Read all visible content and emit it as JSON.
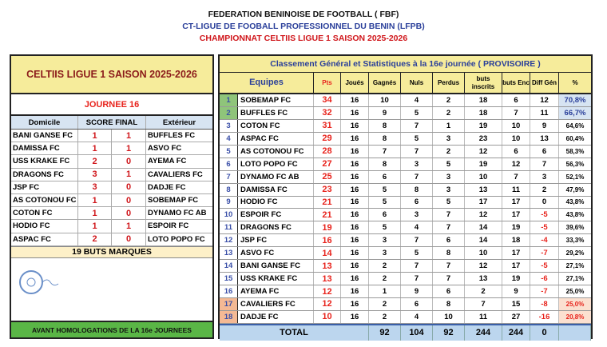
{
  "header": {
    "line1": "FEDERATION BENINOISE DE FOOTBALL ( FBF)",
    "line2": "CT-LIGUE DE FOOBALL PROFESSIONNEL DU BENIN (LFPB)",
    "line3": "CHAMPIONNAT CELTIIS LIGUE 1 SAISON 2025-2026"
  },
  "left": {
    "title": "CELTIIS LIGUE 1 SAISON 2025-2026",
    "journee": "JOURNEE  16",
    "headers": {
      "home": "Domicile",
      "score": "SCORE FINAL",
      "away": "Extérieur"
    },
    "matches": [
      {
        "home": "BANI GANSE FC",
        "hs": "1",
        "as": "1",
        "away": "BUFFLES FC"
      },
      {
        "home": "DAMISSA FC",
        "hs": "1",
        "as": "1",
        "away": "ASVO FC"
      },
      {
        "home": "USS KRAKE FC",
        "hs": "2",
        "as": "0",
        "away": "AYEMA FC"
      },
      {
        "home": "DRAGONS FC",
        "hs": "3",
        "as": "1",
        "away": "CAVALIERS FC"
      },
      {
        "home": "JSP FC",
        "hs": "3",
        "as": "0",
        "away": "DADJE FC"
      },
      {
        "home": "AS COTONOU FC",
        "hs": "1",
        "as": "0",
        "away": "SOBEMAP FC"
      },
      {
        "home": "COTON FC",
        "hs": "1",
        "as": "0",
        "away": "DYNAMO FC AB"
      },
      {
        "home": "HODIO FC",
        "hs": "1",
        "as": "1",
        "away": "ESPOIR FC"
      },
      {
        "home": "ASPAC FC",
        "hs": "2",
        "as": "0",
        "away": "LOTO POPO FC"
      }
    ],
    "goals": "19 BUTS MARQUES",
    "footer": "AVANT HOMOLOGATIONS DE LA 16e JOURNEES"
  },
  "right": {
    "title": "Classement  Général et Statistiques à la  16e journée ( PROVISOIRE )",
    "headers": {
      "teams": "Equipes",
      "pts": "Pts",
      "played": "Joués",
      "won": "Gagnés",
      "drawn": "Nuls",
      "lost": "Perdus",
      "gf": "buts inscrits",
      "ga": "buts Enc",
      "diff": "Diff Gén",
      "pct": "%"
    },
    "rows": [
      {
        "rank": "1",
        "team": "SOBEMAP FC",
        "pts": "34",
        "p": "16",
        "w": "10",
        "d": "4",
        "l": "2",
        "gf": "18",
        "ga": "6",
        "diff": "12",
        "pct": "70,8%",
        "zone": "top"
      },
      {
        "rank": "2",
        "team": "BUFFLES FC",
        "pts": "32",
        "p": "16",
        "w": "9",
        "d": "5",
        "l": "2",
        "gf": "18",
        "ga": "7",
        "diff": "11",
        "pct": "66,7%",
        "zone": "top"
      },
      {
        "rank": "3",
        "team": "COTON FC",
        "pts": "31",
        "p": "16",
        "w": "8",
        "d": "7",
        "l": "1",
        "gf": "19",
        "ga": "10",
        "diff": "9",
        "pct": "64,6%"
      },
      {
        "rank": "4",
        "team": "ASPAC FC",
        "pts": "29",
        "p": "16",
        "w": "8",
        "d": "5",
        "l": "3",
        "gf": "23",
        "ga": "10",
        "diff": "13",
        "pct": "60,4%"
      },
      {
        "rank": "5",
        "team": "AS COTONOU FC",
        "pts": "28",
        "p": "16",
        "w": "7",
        "d": "7",
        "l": "2",
        "gf": "12",
        "ga": "6",
        "diff": "6",
        "pct": "58,3%"
      },
      {
        "rank": "6",
        "team": "LOTO POPO FC",
        "pts": "27",
        "p": "16",
        "w": "8",
        "d": "3",
        "l": "5",
        "gf": "19",
        "ga": "12",
        "diff": "7",
        "pct": "56,3%"
      },
      {
        "rank": "7",
        "team": "DYNAMO FC AB",
        "pts": "25",
        "p": "16",
        "w": "6",
        "d": "7",
        "l": "3",
        "gf": "10",
        "ga": "7",
        "diff": "3",
        "pct": "52,1%"
      },
      {
        "rank": "8",
        "team": "DAMISSA FC",
        "pts": "23",
        "p": "16",
        "w": "5",
        "d": "8",
        "l": "3",
        "gf": "13",
        "ga": "11",
        "diff": "2",
        "pct": "47,9%"
      },
      {
        "rank": "9",
        "team": "HODIO FC",
        "pts": "21",
        "p": "16",
        "w": "5",
        "d": "6",
        "l": "5",
        "gf": "17",
        "ga": "17",
        "diff": "0",
        "pct": "43,8%"
      },
      {
        "rank": "10",
        "team": "ESPOIR FC",
        "pts": "21",
        "p": "16",
        "w": "6",
        "d": "3",
        "l": "7",
        "gf": "12",
        "ga": "17",
        "diff": "-5",
        "pct": "43,8%"
      },
      {
        "rank": "11",
        "team": "DRAGONS FC",
        "pts": "19",
        "p": "16",
        "w": "5",
        "d": "4",
        "l": "7",
        "gf": "14",
        "ga": "19",
        "diff": "-5",
        "pct": "39,6%"
      },
      {
        "rank": "12",
        "team": "JSP FC",
        "pts": "16",
        "p": "16",
        "w": "3",
        "d": "7",
        "l": "6",
        "gf": "14",
        "ga": "18",
        "diff": "-4",
        "pct": "33,3%"
      },
      {
        "rank": "13",
        "team": "ASVO FC",
        "pts": "14",
        "p": "16",
        "w": "3",
        "d": "5",
        "l": "8",
        "gf": "10",
        "ga": "17",
        "diff": "-7",
        "pct": "29,2%"
      },
      {
        "rank": "14",
        "team": "BANI GANSE FC",
        "pts": "13",
        "p": "16",
        "w": "2",
        "d": "7",
        "l": "7",
        "gf": "12",
        "ga": "17",
        "diff": "-5",
        "pct": "27,1%"
      },
      {
        "rank": "15",
        "team": "USS KRAKE FC",
        "pts": "13",
        "p": "16",
        "w": "2",
        "d": "7",
        "l": "7",
        "gf": "13",
        "ga": "19",
        "diff": "-6",
        "pct": "27,1%"
      },
      {
        "rank": "16",
        "team": "AYEMA FC",
        "pts": "12",
        "p": "16",
        "w": "1",
        "d": "9",
        "l": "6",
        "gf": "2",
        "ga": "9",
        "diff": "-7",
        "pct": "25,0%"
      },
      {
        "rank": "17",
        "team": "CAVALIERS FC",
        "pts": "12",
        "p": "16",
        "w": "2",
        "d": "6",
        "l": "8",
        "gf": "7",
        "ga": "15",
        "diff": "-8",
        "pct": "25,0%",
        "zone": "bottom"
      },
      {
        "rank": "18",
        "team": "DADJE FC",
        "pts": "10",
        "p": "16",
        "w": "2",
        "d": "4",
        "l": "10",
        "gf": "11",
        "ga": "27",
        "diff": "-16",
        "pct": "20,8%",
        "zone": "bottom"
      }
    ],
    "total": {
      "label": "TOTAL",
      "w": "92",
      "d": "104",
      "l": "92",
      "gf": "244",
      "ga": "244",
      "diff": "0"
    }
  },
  "colors": {
    "top_rank": "#8fc47a",
    "top_pct": "#d7e4f2",
    "bottom_rank": "#f4b994",
    "bottom_pct": "#fbe0d0"
  }
}
